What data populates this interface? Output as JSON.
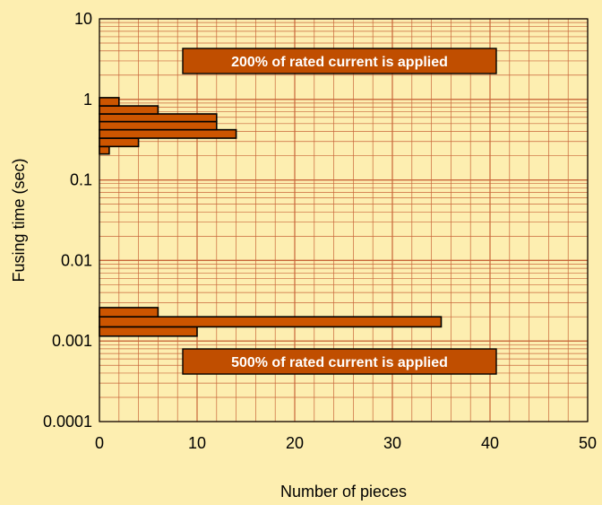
{
  "colors": {
    "background": "#fdeeb0",
    "plot_area": "#fdeeb0",
    "grid": "#c8663a",
    "bar_fill": "#cc5500",
    "bar_stroke": "#000000",
    "annotation_fill": "#c04e00",
    "annotation_text": "#ffffff"
  },
  "chart_data": {
    "type": "bar",
    "orientation": "horizontal",
    "title": "",
    "xlabel": "Number of pieces",
    "ylabel": "Fusing time (sec)",
    "xlim": [
      0,
      50
    ],
    "ylim": [
      0.0001,
      10
    ],
    "y_scale": "log",
    "grid": true,
    "x_ticks": [
      "0",
      "10",
      "20",
      "30",
      "40",
      "50"
    ],
    "y_ticks": [
      "0.0001",
      "0.001",
      "0.01",
      "0.1",
      "1",
      "10"
    ],
    "annotations": [
      {
        "text": "200% of rated current is applied",
        "position": "upper-right"
      },
      {
        "text": "500% of rated current is applied",
        "position": "lower-right"
      }
    ],
    "series": [
      {
        "bins": [
          {
            "y_low": 0.21,
            "y_high": 0.26,
            "value": 1
          },
          {
            "y_low": 0.26,
            "y_high": 0.33,
            "value": 4
          },
          {
            "y_low": 0.33,
            "y_high": 0.42,
            "value": 14
          },
          {
            "y_low": 0.42,
            "y_high": 0.53,
            "value": 12
          },
          {
            "y_low": 0.53,
            "y_high": 0.66,
            "value": 12
          },
          {
            "y_low": 0.66,
            "y_high": 0.83,
            "value": 6
          },
          {
            "y_low": 0.83,
            "y_high": 1.05,
            "value": 2
          }
        ]
      },
      {
        "bins": [
          {
            "y_low": 0.00115,
            "y_high": 0.0015,
            "value": 10
          },
          {
            "y_low": 0.0015,
            "y_high": 0.002,
            "value": 35
          },
          {
            "y_low": 0.002,
            "y_high": 0.0026,
            "value": 6
          }
        ]
      }
    ]
  }
}
